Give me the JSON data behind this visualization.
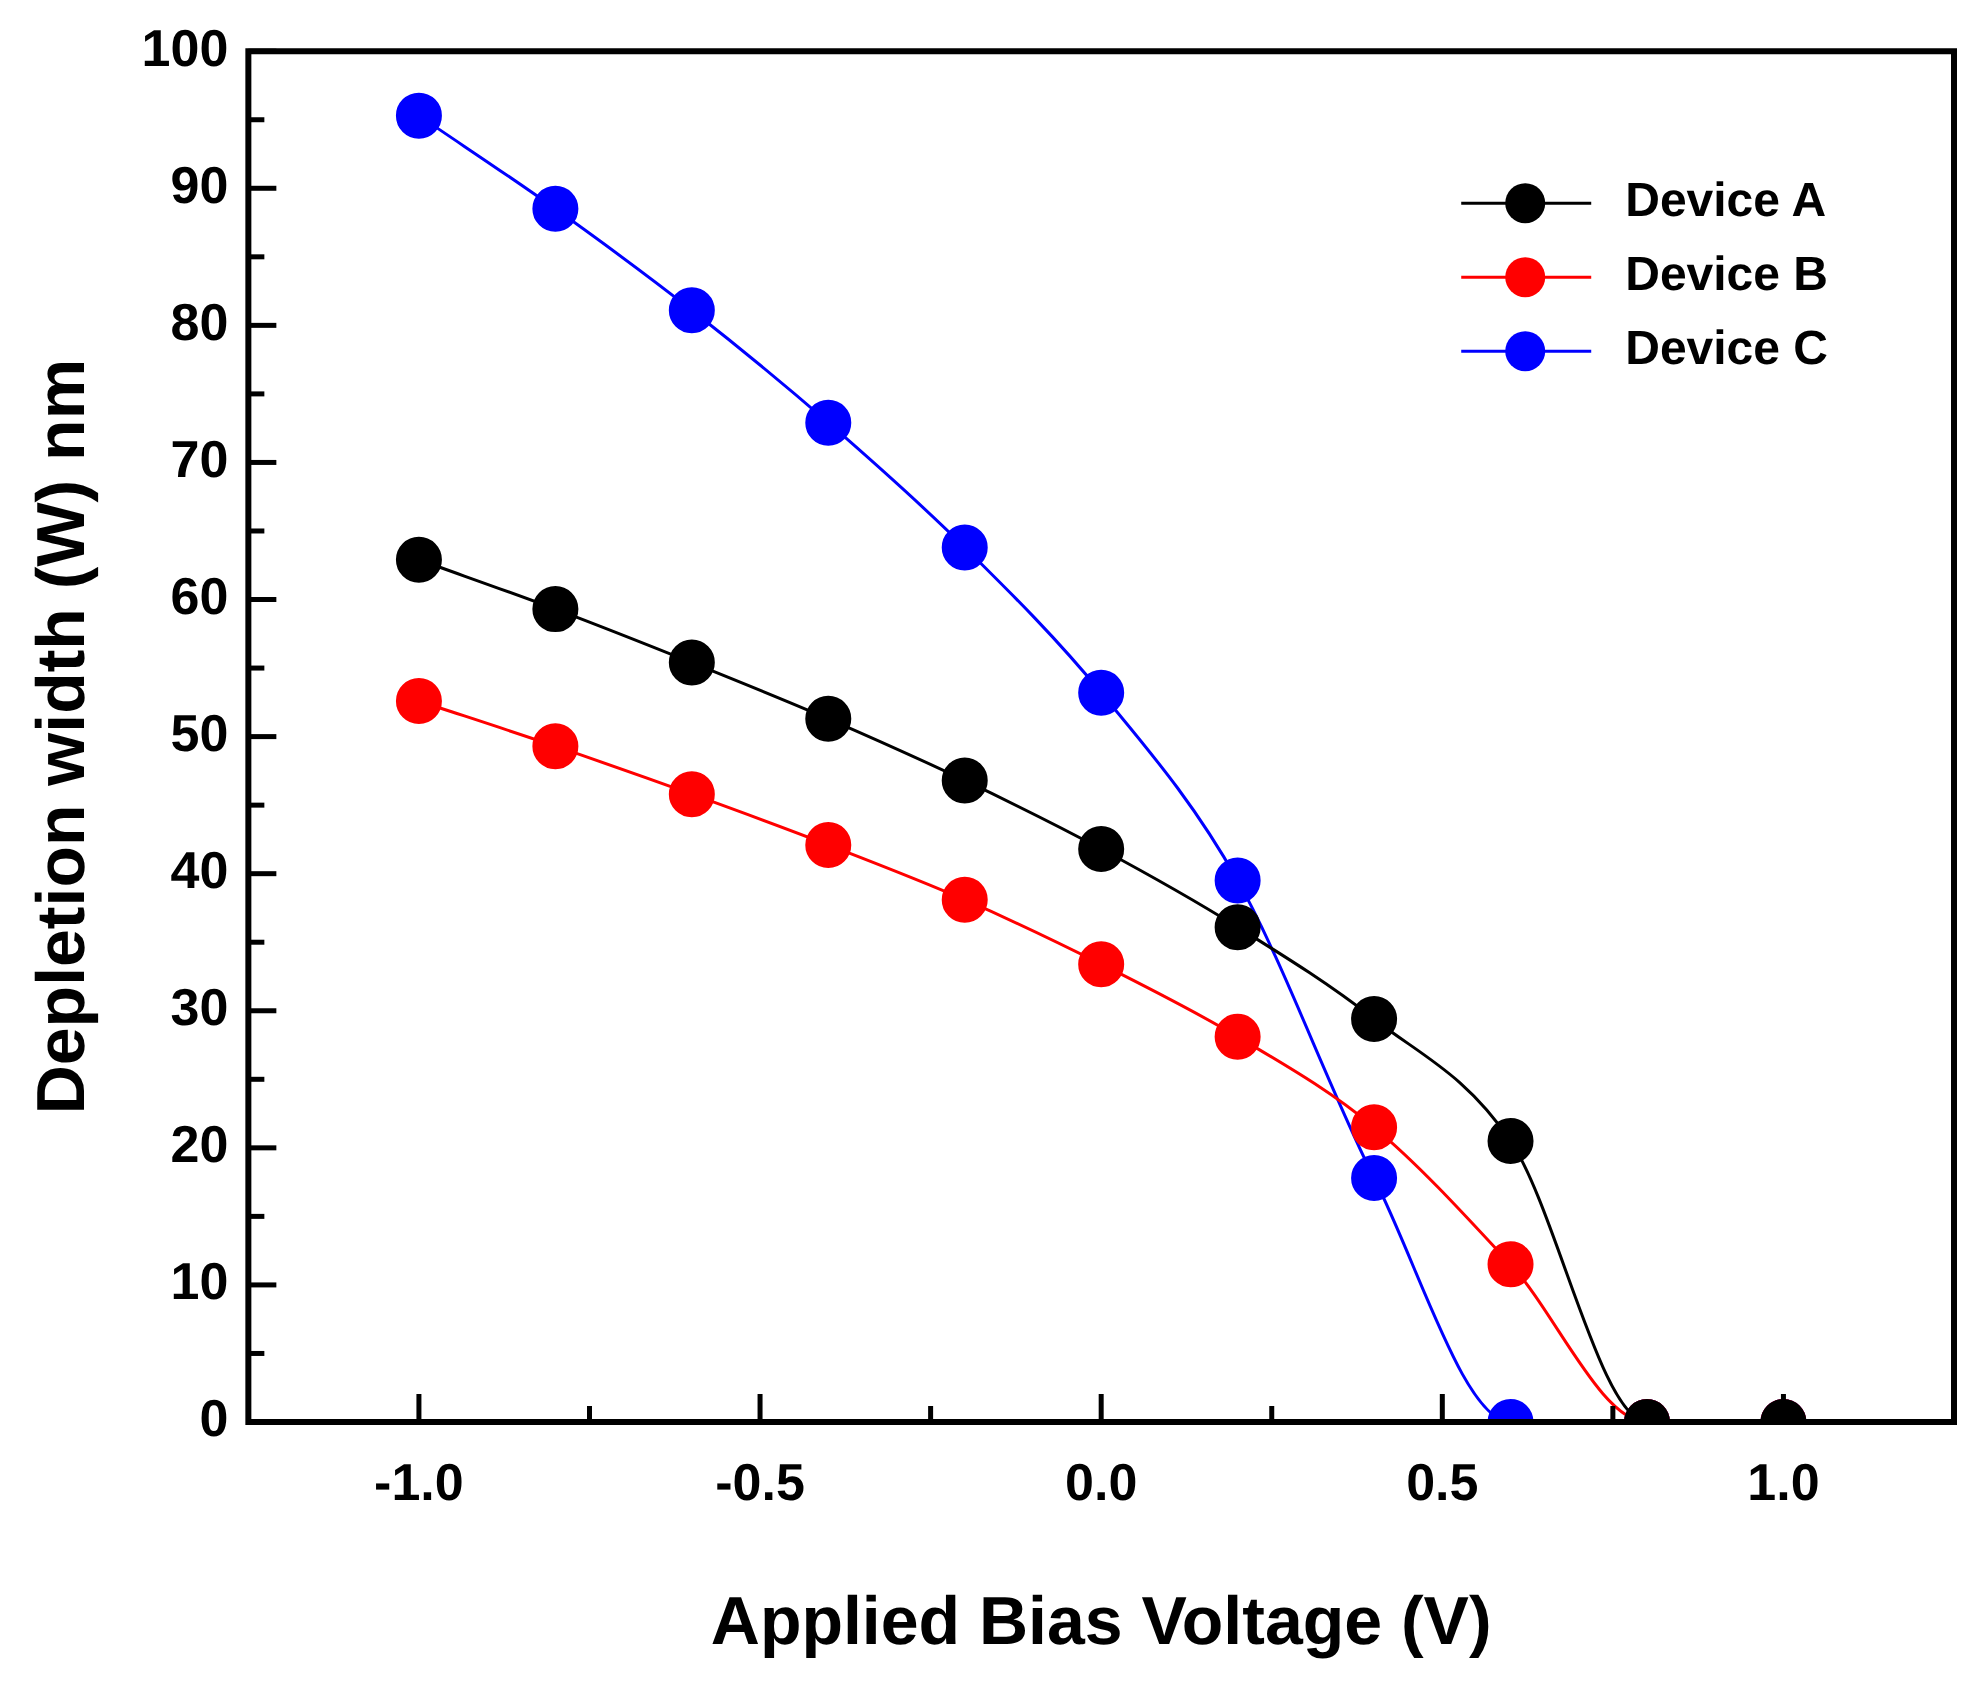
{
  "chart_data": {
    "type": "line",
    "xlabel": "Applied Bias Voltage (V)",
    "ylabel": "Depletion width (W) nm",
    "x": [
      -1.0,
      -0.8,
      -0.6,
      -0.4,
      -0.2,
      0.0,
      0.2,
      0.4,
      0.6,
      0.8,
      1.0
    ],
    "series": [
      {
        "name": "Device A",
        "color": "#000000",
        "values": [
          62.9,
          59.3,
          55.4,
          51.3,
          46.8,
          41.8,
          36.1,
          29.4,
          20.5,
          0,
          0
        ]
      },
      {
        "name": "Device B",
        "color": "#ff0000",
        "values": [
          52.6,
          49.3,
          45.8,
          42.1,
          38.1,
          33.4,
          28.1,
          21.5,
          11.5,
          0,
          0
        ]
      },
      {
        "name": "Device C",
        "color": "#0000ff",
        "values": [
          95.3,
          88.5,
          81.1,
          72.9,
          63.8,
          53.2,
          39.5,
          17.8,
          0,
          0,
          0
        ]
      }
    ],
    "xlim": [
      -1.25,
      1.25
    ],
    "ylim": [
      0,
      100
    ],
    "xticks": [
      {
        "value": -1.0,
        "label": "-1.0"
      },
      {
        "value": -0.75,
        "label": null
      },
      {
        "value": -0.5,
        "label": "-0.5"
      },
      {
        "value": -0.25,
        "label": null
      },
      {
        "value": 0,
        "label": "0.0"
      },
      {
        "value": 0.25,
        "label": null
      },
      {
        "value": 0.5,
        "label": "0.5"
      },
      {
        "value": 0.75,
        "label": null
      },
      {
        "value": 1.0,
        "label": "1.0"
      }
    ],
    "yticks": [
      0,
      {
        "value": 5,
        "label": null
      },
      10,
      {
        "value": 15,
        "label": null
      },
      20,
      {
        "value": 25,
        "label": null
      },
      30,
      {
        "value": 35,
        "label": null
      },
      40,
      {
        "value": 45,
        "label": null
      },
      50,
      {
        "value": 55,
        "label": null
      },
      60,
      {
        "value": 65,
        "label": null
      },
      70,
      {
        "value": 75,
        "label": null
      },
      80,
      {
        "value": 85,
        "label": null
      },
      90,
      {
        "value": 95,
        "label": null
      },
      100
    ],
    "grid": false,
    "legend": "top right",
    "marker": "circle",
    "line_style": "solid"
  }
}
